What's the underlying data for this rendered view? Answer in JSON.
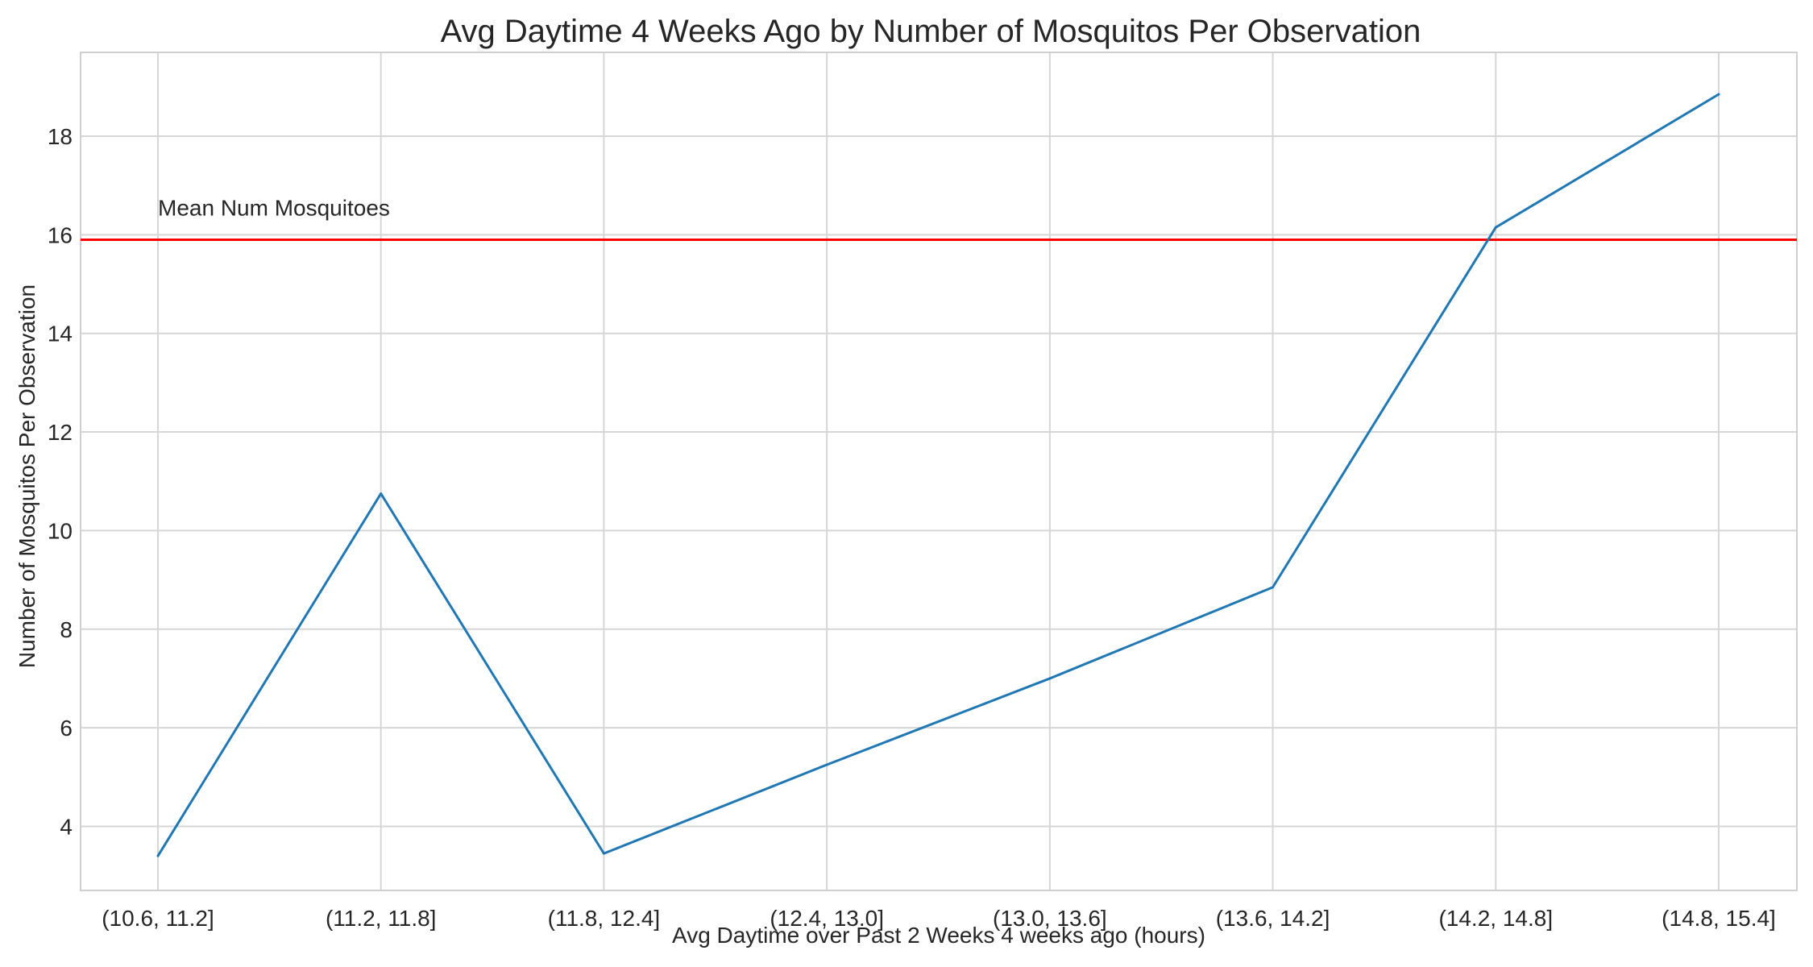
{
  "chart_data": {
    "type": "line",
    "title": "Avg Daytime 4 Weeks Ago by Number of Mosquitos Per Observation",
    "xlabel": "Avg Daytime over Past 2 Weeks 4 weeks ago (hours)",
    "ylabel": "Number of Mosquitos Per Observation",
    "categories": [
      "(10.6, 11.2]",
      "(11.2, 11.8]",
      "(11.8, 12.4]",
      "(12.4, 13.0]",
      "(13.0, 13.6]",
      "(13.6, 14.2]",
      "(14.2, 14.8]",
      "(14.8, 15.4]"
    ],
    "series": [
      {
        "values": [
          3.4,
          10.75,
          3.45,
          5.25,
          7.0,
          8.85,
          16.15,
          18.85
        ],
        "color": "#1f77b4"
      }
    ],
    "reference_line": {
      "label": "Mean Num Mosquitoes",
      "value": 15.9,
      "color": "#ff0000"
    },
    "ylim": [
      2.7,
      19.7
    ],
    "yticks": [
      4,
      6,
      8,
      10,
      12,
      14,
      16,
      18
    ],
    "grid": true
  }
}
